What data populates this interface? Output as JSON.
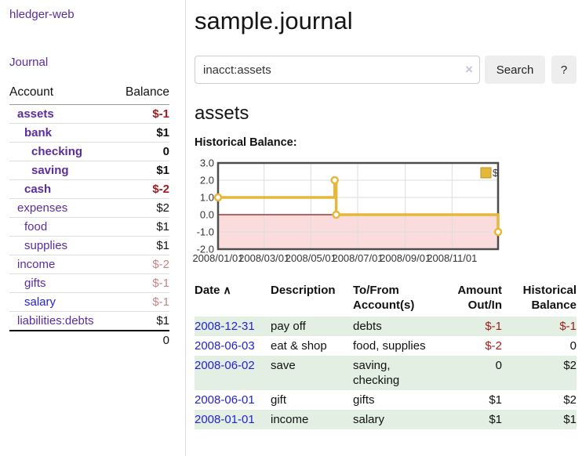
{
  "app": {
    "brand": "hledger-web"
  },
  "colors": {
    "link_purple": "#5b2d9c",
    "link_blue": "#2323cf",
    "negative_red": "#9f1c1c",
    "faded_red": "#c38686",
    "zebra_green": "#e2efe2",
    "chart_gold": "#e5b73b",
    "negative_region_pink": "#fadcdc"
  },
  "sidebar": {
    "nav": {
      "journal_label": "Journal"
    },
    "table": {
      "headers": {
        "account": "Account",
        "balance": "Balance"
      },
      "rows": [
        {
          "account": "assets",
          "balance": "$-1",
          "level": 1,
          "bold": true,
          "balance_class": "neg",
          "link_class": "plink"
        },
        {
          "account": "bank",
          "balance": "$1",
          "level": 2,
          "bold": true,
          "balance_class": "",
          "link_class": "plink"
        },
        {
          "account": "checking",
          "balance": "0",
          "level": 3,
          "bold": true,
          "balance_class": "",
          "link_class": "plink"
        },
        {
          "account": "saving",
          "balance": "$1",
          "level": 3,
          "bold": true,
          "balance_class": "",
          "link_class": "plink"
        },
        {
          "account": "cash",
          "balance": "$-2",
          "level": 2,
          "bold": true,
          "balance_class": "neg",
          "link_class": "plink"
        },
        {
          "account": "expenses",
          "balance": "$2",
          "level": 1,
          "bold": false,
          "balance_class": "",
          "link_class": "plink"
        },
        {
          "account": "food",
          "balance": "$1",
          "level": 2,
          "bold": false,
          "balance_class": "",
          "link_class": "plink"
        },
        {
          "account": "supplies",
          "balance": "$1",
          "level": 2,
          "bold": false,
          "balance_class": "",
          "link_class": "plink"
        },
        {
          "account": "income",
          "balance": "$-2",
          "level": 1,
          "bold": false,
          "balance_class": "dim",
          "link_class": "plink"
        },
        {
          "account": "gifts",
          "balance": "$-1",
          "level": 2,
          "bold": false,
          "balance_class": "dim",
          "link_class": "plink"
        },
        {
          "account": "salary",
          "balance": "$-1",
          "level": 2,
          "bold": false,
          "balance_class": "dim",
          "link_class": "bluelink"
        },
        {
          "account": "liabilities:debts",
          "balance": "$1",
          "level": 1,
          "bold": false,
          "balance_class": "",
          "link_class": "plink"
        }
      ],
      "total": "0"
    }
  },
  "main": {
    "title": "sample.journal",
    "search": {
      "value": "inacct:assets",
      "clear_icon": "×",
      "search_button": "Search",
      "help_button": "?"
    },
    "section_title": "assets",
    "chart_label": "Historical Balance:"
  },
  "chart_data": {
    "type": "line",
    "step": true,
    "title": "Historical Balance",
    "legend": {
      "position": "top-right",
      "entries": [
        "$"
      ]
    },
    "series": [
      {
        "name": "$",
        "color": "#e5b73b",
        "points": [
          {
            "x": "2008-01-01",
            "y": 1.0
          },
          {
            "x": "2008-06-01",
            "y": 2.0
          },
          {
            "x": "2008-06-03",
            "y": 0.0
          },
          {
            "x": "2008-12-31",
            "y": -1.0
          }
        ]
      }
    ],
    "ylim": [
      -2.0,
      3.0
    ],
    "yticks": [
      3.0,
      2.0,
      1.0,
      0.0,
      -1.0,
      -2.0
    ],
    "xticks": [
      "2008/01/01",
      "2008/03/01",
      "2008/05/01",
      "2008/07/01",
      "2008/09/01",
      "2008/11/01"
    ],
    "x_domain": [
      "2008-01-01",
      "2008-12-31"
    ],
    "grid": true,
    "negative_region_fill": "#fadcdc",
    "zero_line_color": "#8f1010",
    "border_color": "#4d4d4d",
    "grid_color": "#dddddd",
    "marker": {
      "shape": "circle",
      "fill": "#ffffff",
      "stroke": "#e5b73b"
    }
  },
  "register": {
    "sort_indicator": "∧",
    "headers": [
      {
        "line1": "Date",
        "line2": "",
        "align": "left",
        "sortable": true
      },
      {
        "line1": "Description",
        "line2": "",
        "align": "left"
      },
      {
        "line1": "To/From",
        "line2": "Account(s)",
        "align": "left"
      },
      {
        "line1": "Amount",
        "line2": "Out/In",
        "align": "right"
      },
      {
        "line1": "Historical",
        "line2": "Balance",
        "align": "right"
      }
    ],
    "rows": [
      {
        "date": "2008-12-31",
        "description": "pay off",
        "accounts": "debts",
        "amount": "$-1",
        "amount_negative": true,
        "balance": "$-1",
        "balance_negative": true,
        "shaded": true
      },
      {
        "date": "2008-06-03",
        "description": "eat & shop",
        "accounts": "food, supplies",
        "amount": "$-2",
        "amount_negative": true,
        "balance": "0",
        "balance_negative": false,
        "shaded": false
      },
      {
        "date": "2008-06-02",
        "description": "save",
        "accounts": "saving, checking",
        "amount": "0",
        "amount_negative": false,
        "balance": "$2",
        "balance_negative": false,
        "shaded": true
      },
      {
        "date": "2008-06-01",
        "description": "gift",
        "accounts": "gifts",
        "amount": "$1",
        "amount_negative": false,
        "balance": "$2",
        "balance_negative": false,
        "shaded": false
      },
      {
        "date": "2008-01-01",
        "description": "income",
        "accounts": "salary",
        "amount": "$1",
        "amount_negative": false,
        "balance": "$1",
        "balance_negative": false,
        "shaded": true
      }
    ]
  }
}
